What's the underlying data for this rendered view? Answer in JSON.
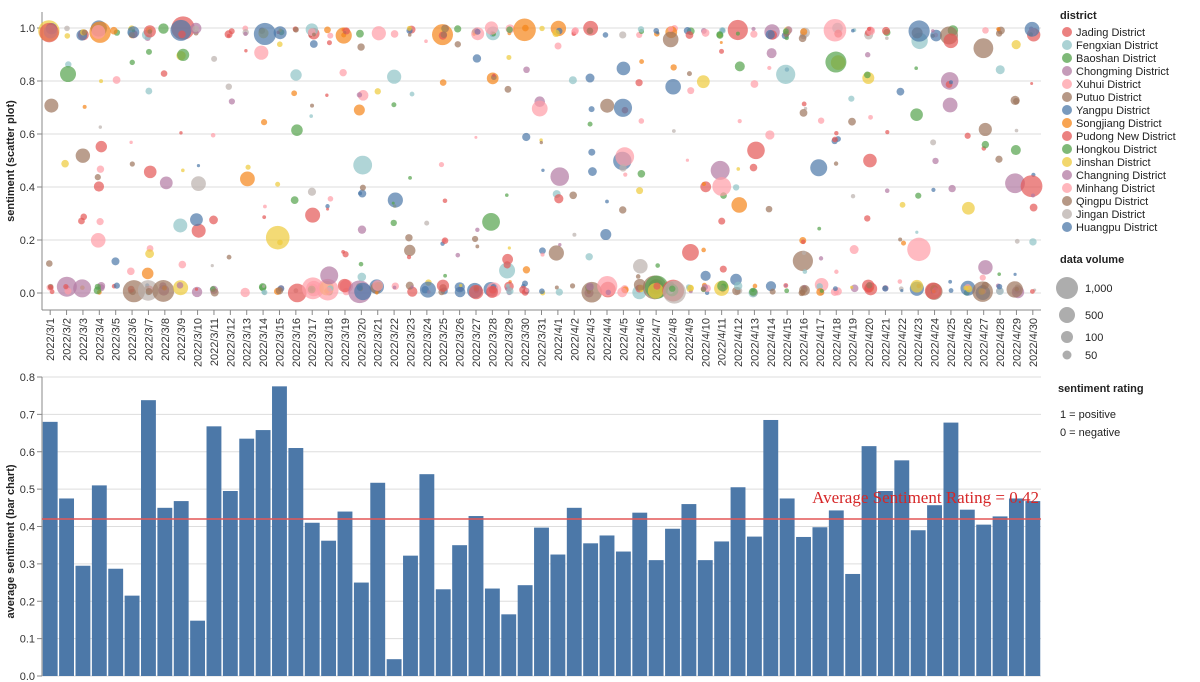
{
  "colors": {
    "bar": "#4c78a8",
    "avg_line": "#e45756",
    "avg_text": "#d62728"
  },
  "chart_data": [
    {
      "type": "scatter",
      "ylabel": "sentiment (scatter plot)",
      "ylim": [
        0,
        1
      ],
      "yticks": [
        "0.0",
        "0.2",
        "0.4",
        "0.6",
        "0.8",
        "1.0"
      ],
      "categories": [
        "2022/3/1",
        "2022/3/2",
        "2022/3/3",
        "2022/3/4",
        "2022/3/5",
        "2022/3/6",
        "2022/3/7",
        "2022/3/8",
        "2022/3/9",
        "2022/3/10",
        "2022/3/11",
        "2022/3/12",
        "2022/3/13",
        "2022/3/14",
        "2022/3/15",
        "2022/3/16",
        "2022/3/17",
        "2022/3/18",
        "2022/3/19",
        "2022/3/20",
        "2022/3/21",
        "2022/3/22",
        "2022/3/23",
        "2022/3/24",
        "2022/3/25",
        "2022/3/26",
        "2022/3/27",
        "2022/3/28",
        "2022/3/29",
        "2022/3/30",
        "2022/3/31",
        "2022/4/1",
        "2022/4/2",
        "2022/4/3",
        "2022/4/4",
        "2022/4/5",
        "2022/4/6",
        "2022/4/7",
        "2022/4/8",
        "2022/4/9",
        "2022/4/10",
        "2022/4/11",
        "2022/4/12",
        "2022/4/13",
        "2022/4/14",
        "2022/4/15",
        "2022/4/16",
        "2022/4/17",
        "2022/4/18",
        "2022/4/19",
        "2022/4/20",
        "2022/4/21",
        "2022/4/22",
        "2022/4/23",
        "2022/4/24",
        "2022/4/25",
        "2022/4/26",
        "2022/4/27",
        "2022/4/28",
        "2022/4/29",
        "2022/4/30"
      ],
      "color_legend_title": "district",
      "districts": [
        {
          "name": "Jading District",
          "color": "#e45756"
        },
        {
          "name": "Fengxian District",
          "color": "#8fc3c6"
        },
        {
          "name": "Baoshan District",
          "color": "#54a24b"
        },
        {
          "name": "Chongming District",
          "color": "#b279a2"
        },
        {
          "name": "Xuhui District",
          "color": "#ff9da6"
        },
        {
          "name": "Putuo District",
          "color": "#9d755d"
        },
        {
          "name": "Yangpu District",
          "color": "#4c78a8"
        },
        {
          "name": "Songjiang District",
          "color": "#f58518"
        },
        {
          "name": "Pudong New District",
          "color": "#e45756"
        },
        {
          "name": "Hongkou District",
          "color": "#54a24b"
        },
        {
          "name": "Jinshan District",
          "color": "#eeca3b"
        },
        {
          "name": "Changning District",
          "color": "#b279a2"
        },
        {
          "name": "Minhang District",
          "color": "#ff9da6"
        },
        {
          "name": "Qingpu District",
          "color": "#9d755d"
        },
        {
          "name": "Jingan District",
          "color": "#bab0ac"
        },
        {
          "name": "Huangpu District",
          "color": "#4c78a8"
        }
      ],
      "size_legend_title": "data volume",
      "size_legend": [
        {
          "label": "1,000",
          "value": 1000
        },
        {
          "label": "500",
          "value": 500
        },
        {
          "label": "100",
          "value": 100
        },
        {
          "label": "50",
          "value": 50
        }
      ],
      "sentiment_legend_title": "sentiment rating",
      "sentiment_legend": [
        "1 = positive",
        "0 = negative"
      ]
    },
    {
      "type": "bar",
      "ylabel": "average sentiment (bar chart)",
      "ylim": [
        0,
        0.8
      ],
      "yticks": [
        "0.0",
        "0.1",
        "0.2",
        "0.3",
        "0.4",
        "0.5",
        "0.6",
        "0.7",
        "0.8"
      ],
      "values": [
        0.68,
        0.475,
        0.295,
        0.51,
        0.287,
        0.215,
        0.738,
        0.45,
        0.468,
        0.148,
        0.668,
        0.495,
        0.635,
        0.658,
        0.775,
        0.61,
        0.41,
        0.362,
        0.44,
        0.25,
        0.517,
        0.045,
        0.322,
        0.54,
        0.232,
        0.35,
        0.428,
        0.234,
        0.165,
        0.243,
        0.397,
        0.325,
        0.45,
        0.355,
        0.376,
        0.333,
        0.437,
        0.31,
        0.394,
        0.46,
        0.31,
        0.36,
        0.505,
        0.373,
        0.685,
        0.475,
        0.372,
        0.398,
        0.443,
        0.273,
        0.615,
        0.495,
        0.577,
        0.39,
        0.457,
        0.678,
        0.445,
        0.405,
        0.427,
        0.475,
        0.468
      ],
      "avg_value": 0.42,
      "avg_label": "Average Sentiment Rating = 0.42"
    }
  ]
}
